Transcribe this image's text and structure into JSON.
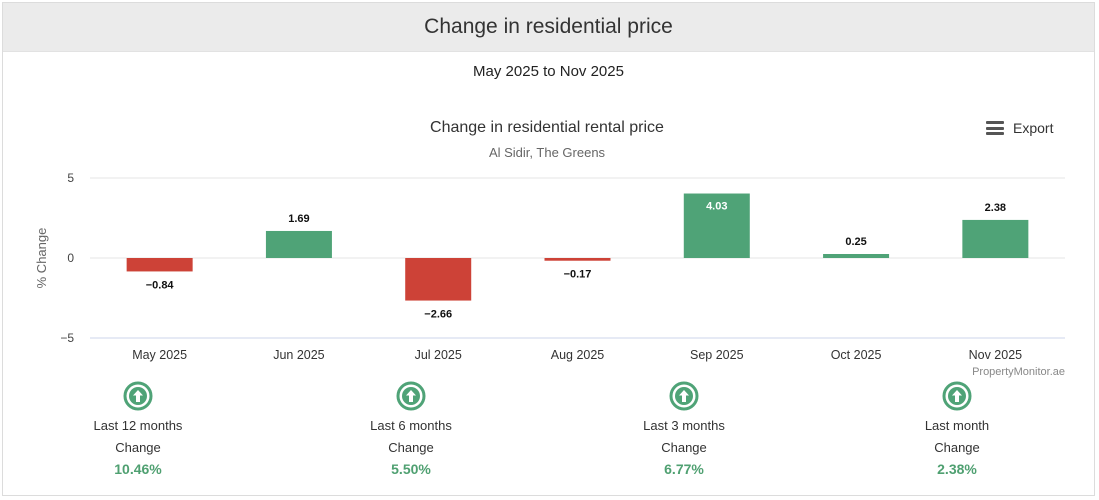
{
  "header": {
    "title": "Change in residential price"
  },
  "subheader": {
    "text": "May 2025 to Nov 2025"
  },
  "export_label": "Export",
  "credit": "PropertyMonitor.ae",
  "colors": {
    "positive": "#4fa377",
    "negative": "#cd4237",
    "summary_value": "#4fa071"
  },
  "chart_data": {
    "type": "bar",
    "title": "Change in residential rental price",
    "subtitle": "Al Sidir, The Greens",
    "ylabel": "% Change",
    "xlabel": "",
    "ylim": [
      -5,
      5
    ],
    "yticks": [
      "5",
      "0",
      "−5"
    ],
    "ytick_values": [
      5,
      0,
      -5
    ],
    "grid": true,
    "categories": [
      "May 2025",
      "Jun 2025",
      "Jul 2025",
      "Aug 2025",
      "Sep 2025",
      "Oct 2025",
      "Nov 2025"
    ],
    "values": [
      -0.84,
      1.69,
      -2.66,
      -0.17,
      4.03,
      0.25,
      2.38
    ],
    "value_labels": [
      "−0.84",
      "1.69",
      "−2.66",
      "−0.17",
      "4.03",
      "0.25",
      "2.38"
    ]
  },
  "summary": [
    {
      "icon": "arrow-up-circle-icon",
      "period": "Last 12 months",
      "label": "Change",
      "value": "10.46%"
    },
    {
      "icon": "arrow-up-circle-icon",
      "period": "Last 6 months",
      "label": "Change",
      "value": "5.50%"
    },
    {
      "icon": "arrow-up-circle-icon",
      "period": "Last 3 months",
      "label": "Change",
      "value": "6.77%"
    },
    {
      "icon": "arrow-up-circle-icon",
      "period": "Last month",
      "label": "Change",
      "value": "2.38%"
    }
  ]
}
